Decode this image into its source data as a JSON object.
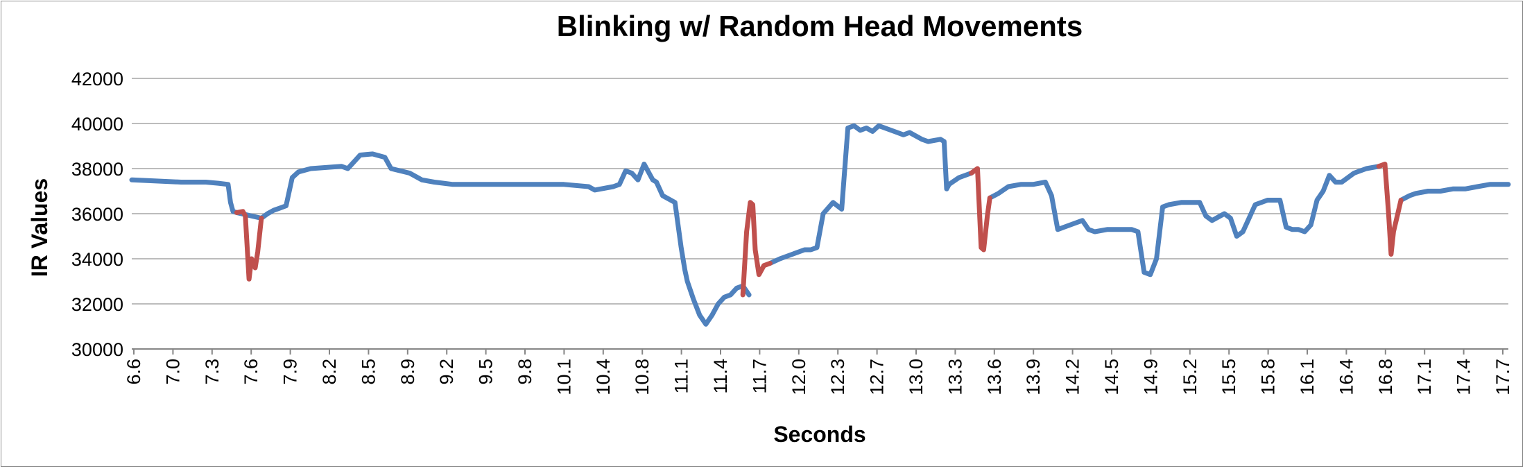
{
  "chart_data": {
    "type": "line",
    "title": "Blinking w/ Random Head Movements",
    "xlabel": "Seconds",
    "ylabel": "IR Values",
    "ylim": [
      30000,
      42000
    ],
    "yticks": [
      30000,
      32000,
      34000,
      36000,
      38000,
      40000,
      42000
    ],
    "xlim": [
      6.6,
      17.75
    ],
    "xticks": [
      "6.6",
      "7.0",
      "7.3",
      "7.6",
      "7.9",
      "8.2",
      "8.5",
      "8.9",
      "9.2",
      "9.5",
      "9.8",
      "10.1",
      "10.4",
      "10.8",
      "11.1",
      "11.4",
      "11.7",
      "12.0",
      "12.3",
      "12.7",
      "13.0",
      "13.3",
      "13.6",
      "13.9",
      "14.2",
      "14.5",
      "14.9",
      "15.2",
      "15.5",
      "15.8",
      "16.1",
      "16.4",
      "16.8",
      "17.1",
      "17.4",
      "17.7"
    ],
    "grid": true,
    "legend": "none",
    "colors": {
      "baseline": "#4f81bd",
      "blink": "#c0504d"
    },
    "series": [
      {
        "color": "#4f81bd",
        "x": [
          6.6,
          6.8,
          7.0,
          7.2,
          7.3,
          7.38,
          7.4,
          7.42,
          7.45,
          7.65,
          7.7,
          7.75,
          7.8,
          7.85,
          7.9,
          7.95,
          8.05,
          8.3,
          8.35,
          8.45,
          8.55,
          8.65,
          8.7,
          8.85,
          8.95,
          9.05,
          9.2,
          9.5,
          9.8,
          10.1,
          10.3,
          10.35,
          10.5,
          10.55,
          10.6,
          10.65,
          10.7,
          10.75,
          10.78,
          10.82,
          10.85,
          10.9,
          11.0,
          11.05,
          11.08,
          11.1,
          11.15,
          11.2,
          11.25,
          11.3,
          11.35,
          11.4,
          11.45,
          11.5,
          11.55,
          11.6
        ],
        "y": [
          37500,
          37450,
          37400,
          37400,
          37350,
          37300,
          36500,
          36100,
          36050,
          35800,
          36000,
          36150,
          36250,
          36350,
          37600,
          37850,
          38000,
          38100,
          38000,
          38600,
          38650,
          38500,
          38000,
          37800,
          37500,
          37400,
          37300,
          37300,
          37300,
          37300,
          37200,
          37050,
          37200,
          37300,
          37900,
          37800,
          37500,
          38200,
          37900,
          37500,
          37400,
          36800,
          36500,
          34500,
          33500,
          33000,
          32200,
          31500,
          31100,
          31500,
          32000,
          32300,
          32400,
          32700,
          32800,
          32400
        ],
        "extra": [
          {
            "x": [
              11.77,
              11.85,
              11.95,
              12.05,
              12.1,
              12.15,
              12.2,
              12.28,
              12.35,
              12.4,
              12.45,
              12.5,
              12.55,
              12.6,
              12.65,
              12.7,
              12.8,
              12.85,
              12.9,
              13.0,
              13.05,
              13.15,
              13.18,
              13.2,
              13.22,
              13.3,
              13.4
            ],
            "y": [
              33800,
              34000,
              34200,
              34400,
              34400,
              34500,
              36000,
              36500,
              36200,
              39800,
              39900,
              39700,
              39800,
              39650,
              39900,
              39800,
              39600,
              39500,
              39600,
              39300,
              39200,
              39300,
              39200,
              37100,
              37300,
              37600,
              37800
            ]
          },
          {
            "x": [
              13.55,
              13.62,
              13.7,
              13.8,
              13.9,
              14.0,
              14.05,
              14.1,
              14.15,
              14.25,
              14.3,
              14.35,
              14.4,
              14.5,
              14.6,
              14.7,
              14.75,
              14.8,
              14.85,
              14.9,
              14.95,
              15.0,
              15.1,
              15.25,
              15.3,
              15.35,
              15.45,
              15.5,
              15.55,
              15.6,
              15.65,
              15.7,
              15.8,
              15.9,
              15.95,
              16.0,
              16.05,
              16.1,
              16.15,
              16.2,
              16.25,
              16.3,
              16.35,
              16.4,
              16.5,
              16.6,
              16.7
            ],
            "y": [
              36700,
              36900,
              37200,
              37300,
              37300,
              37400,
              36800,
              35300,
              35400,
              35600,
              35700,
              35300,
              35200,
              35300,
              35300,
              35300,
              35200,
              33400,
              33300,
              34000,
              36300,
              36400,
              36500,
              36500,
              35900,
              35700,
              36000,
              35800,
              35000,
              35200,
              35800,
              36400,
              36600,
              36600,
              35400,
              35300,
              35300,
              35200,
              35500,
              36600,
              37000,
              37700,
              37400,
              37400,
              37800,
              38000,
              38100
            ]
          },
          {
            "x": [
              16.88,
              16.95,
              17.0,
              17.1,
              17.2,
              17.3,
              17.4,
              17.5,
              17.6,
              17.75
            ],
            "y": [
              36600,
              36800,
              36900,
              37000,
              37000,
              37100,
              37100,
              37200,
              37300,
              37300
            ]
          }
        ]
      },
      {
        "color": "#c0504d",
        "segments": [
          {
            "x": [
              7.45,
              7.5,
              7.52,
              7.55,
              7.57,
              7.6,
              7.62,
              7.65
            ],
            "y": [
              36050,
              36100,
              35900,
              33100,
              34000,
              33600,
              34300,
              35800
            ]
          },
          {
            "x": [
              11.55,
              11.58,
              11.61,
              11.63,
              11.65,
              11.68,
              11.72,
              11.77
            ],
            "y": [
              32400,
              35200,
              36500,
              36400,
              34400,
              33300,
              33700,
              33800
            ]
          },
          {
            "x": [
              13.4,
              13.45,
              13.48,
              13.5,
              13.53,
              13.55
            ],
            "y": [
              37800,
              38000,
              34500,
              34400,
              35900,
              36700
            ]
          },
          {
            "x": [
              16.7,
              16.75,
              16.78,
              16.8,
              16.82,
              16.85,
              16.88
            ],
            "y": [
              38100,
              38200,
              36000,
              34200,
              35200,
              35900,
              36600
            ]
          }
        ]
      }
    ]
  }
}
